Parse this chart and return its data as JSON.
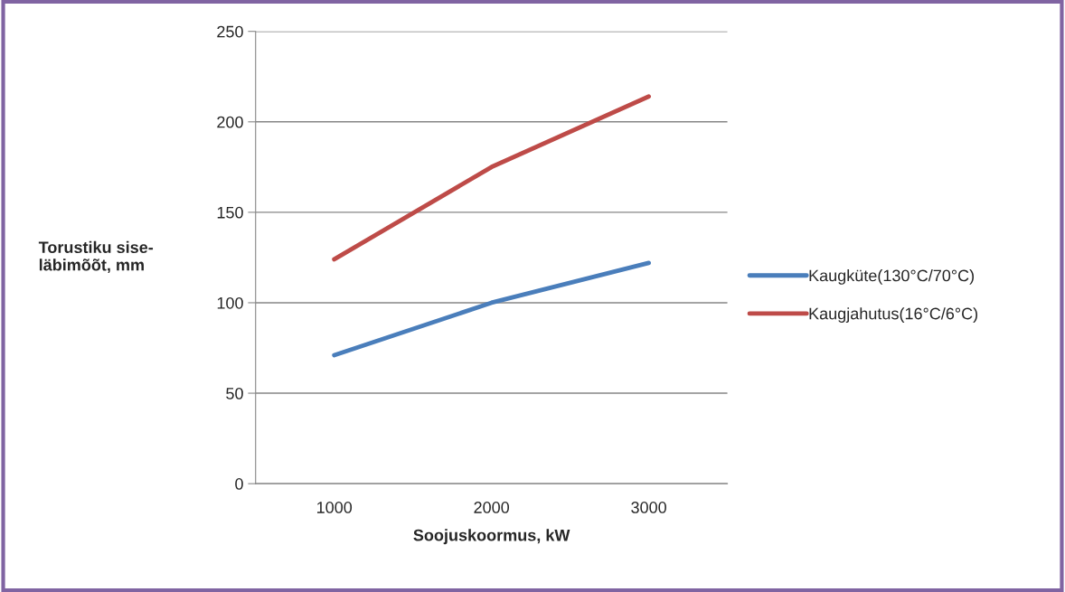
{
  "chart_data": {
    "type": "line",
    "xlabel": "Soojuskoormus, kW",
    "ylabel": "Torustiku sise-\nläbimõõt, mm",
    "categories": [
      "1000",
      "2000",
      "3000"
    ],
    "series": [
      {
        "name": "Kaugküte(130°C/70°C)",
        "color": "#4a7ebb",
        "values": [
          71,
          100,
          122
        ]
      },
      {
        "name": "Kaugjahutus(16°C/6°C)",
        "color": "#be4b48",
        "values": [
          124,
          175,
          214
        ]
      }
    ],
    "ylim": [
      0,
      250
    ],
    "yticks": [
      0,
      50,
      100,
      150,
      200,
      250
    ],
    "grid": "y",
    "legend": "right",
    "marker": "none",
    "line_style": "solid"
  }
}
